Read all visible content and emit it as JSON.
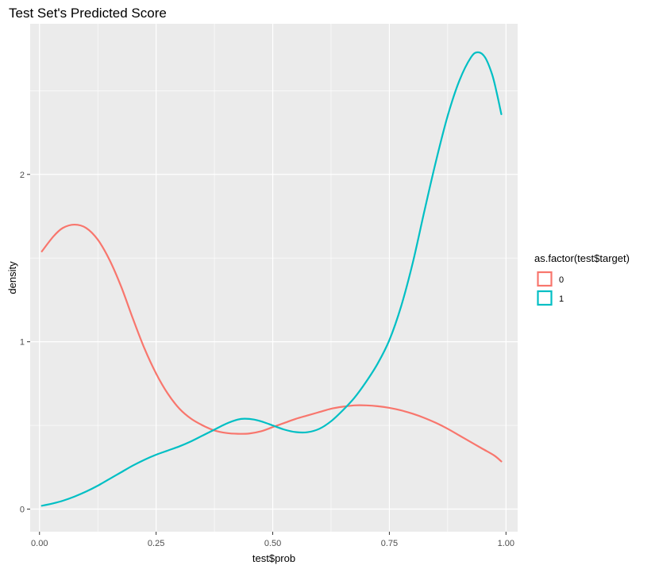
{
  "chart_data": {
    "type": "line",
    "title": "Test Set's Predicted Score",
    "xlabel": "test$prob",
    "ylabel": "density",
    "xlim": [
      -0.02,
      1.025
    ],
    "ylim": [
      -0.135,
      2.9
    ],
    "x_ticks": [
      "0.00",
      "0.25",
      "0.50",
      "0.75",
      "1.00"
    ],
    "y_ticks": [
      "0",
      "1",
      "2"
    ],
    "grid": true,
    "legend": {
      "title": "as.factor(test$target)",
      "position": "right",
      "entries": [
        "0",
        "1"
      ]
    },
    "series": [
      {
        "name": "0",
        "color": "#F8766D",
        "points": [
          [
            0.005,
            1.54
          ],
          [
            0.03,
            1.63
          ],
          [
            0.05,
            1.68
          ],
          [
            0.075,
            1.7
          ],
          [
            0.1,
            1.68
          ],
          [
            0.125,
            1.61
          ],
          [
            0.15,
            1.49
          ],
          [
            0.175,
            1.33
          ],
          [
            0.2,
            1.14
          ],
          [
            0.225,
            0.96
          ],
          [
            0.25,
            0.81
          ],
          [
            0.275,
            0.69
          ],
          [
            0.3,
            0.6
          ],
          [
            0.325,
            0.54
          ],
          [
            0.35,
            0.5
          ],
          [
            0.375,
            0.47
          ],
          [
            0.4,
            0.455
          ],
          [
            0.425,
            0.45
          ],
          [
            0.45,
            0.452
          ],
          [
            0.475,
            0.465
          ],
          [
            0.5,
            0.49
          ],
          [
            0.525,
            0.515
          ],
          [
            0.55,
            0.54
          ],
          [
            0.575,
            0.56
          ],
          [
            0.6,
            0.58
          ],
          [
            0.625,
            0.6
          ],
          [
            0.65,
            0.612
          ],
          [
            0.675,
            0.62
          ],
          [
            0.7,
            0.62
          ],
          [
            0.725,
            0.615
          ],
          [
            0.75,
            0.605
          ],
          [
            0.775,
            0.59
          ],
          [
            0.8,
            0.57
          ],
          [
            0.825,
            0.545
          ],
          [
            0.85,
            0.515
          ],
          [
            0.875,
            0.48
          ],
          [
            0.9,
            0.44
          ],
          [
            0.925,
            0.4
          ],
          [
            0.95,
            0.36
          ],
          [
            0.975,
            0.32
          ],
          [
            0.99,
            0.285
          ]
        ]
      },
      {
        "name": "1",
        "color": "#00BFC4",
        "points": [
          [
            0.005,
            0.02
          ],
          [
            0.03,
            0.035
          ],
          [
            0.05,
            0.05
          ],
          [
            0.075,
            0.075
          ],
          [
            0.1,
            0.105
          ],
          [
            0.125,
            0.14
          ],
          [
            0.15,
            0.18
          ],
          [
            0.175,
            0.22
          ],
          [
            0.2,
            0.26
          ],
          [
            0.225,
            0.295
          ],
          [
            0.25,
            0.325
          ],
          [
            0.275,
            0.35
          ],
          [
            0.3,
            0.375
          ],
          [
            0.325,
            0.405
          ],
          [
            0.35,
            0.44
          ],
          [
            0.375,
            0.475
          ],
          [
            0.4,
            0.51
          ],
          [
            0.425,
            0.535
          ],
          [
            0.44,
            0.54
          ],
          [
            0.46,
            0.535
          ],
          [
            0.48,
            0.52
          ],
          [
            0.5,
            0.5
          ],
          [
            0.525,
            0.475
          ],
          [
            0.55,
            0.46
          ],
          [
            0.575,
            0.46
          ],
          [
            0.6,
            0.48
          ],
          [
            0.625,
            0.525
          ],
          [
            0.65,
            0.59
          ],
          [
            0.675,
            0.665
          ],
          [
            0.7,
            0.76
          ],
          [
            0.725,
            0.87
          ],
          [
            0.75,
            1.01
          ],
          [
            0.775,
            1.21
          ],
          [
            0.8,
            1.47
          ],
          [
            0.825,
            1.78
          ],
          [
            0.85,
            2.08
          ],
          [
            0.875,
            2.35
          ],
          [
            0.9,
            2.56
          ],
          [
            0.925,
            2.7
          ],
          [
            0.94,
            2.73
          ],
          [
            0.955,
            2.7
          ],
          [
            0.97,
            2.6
          ],
          [
            0.98,
            2.49
          ],
          [
            0.99,
            2.36
          ]
        ]
      }
    ]
  }
}
